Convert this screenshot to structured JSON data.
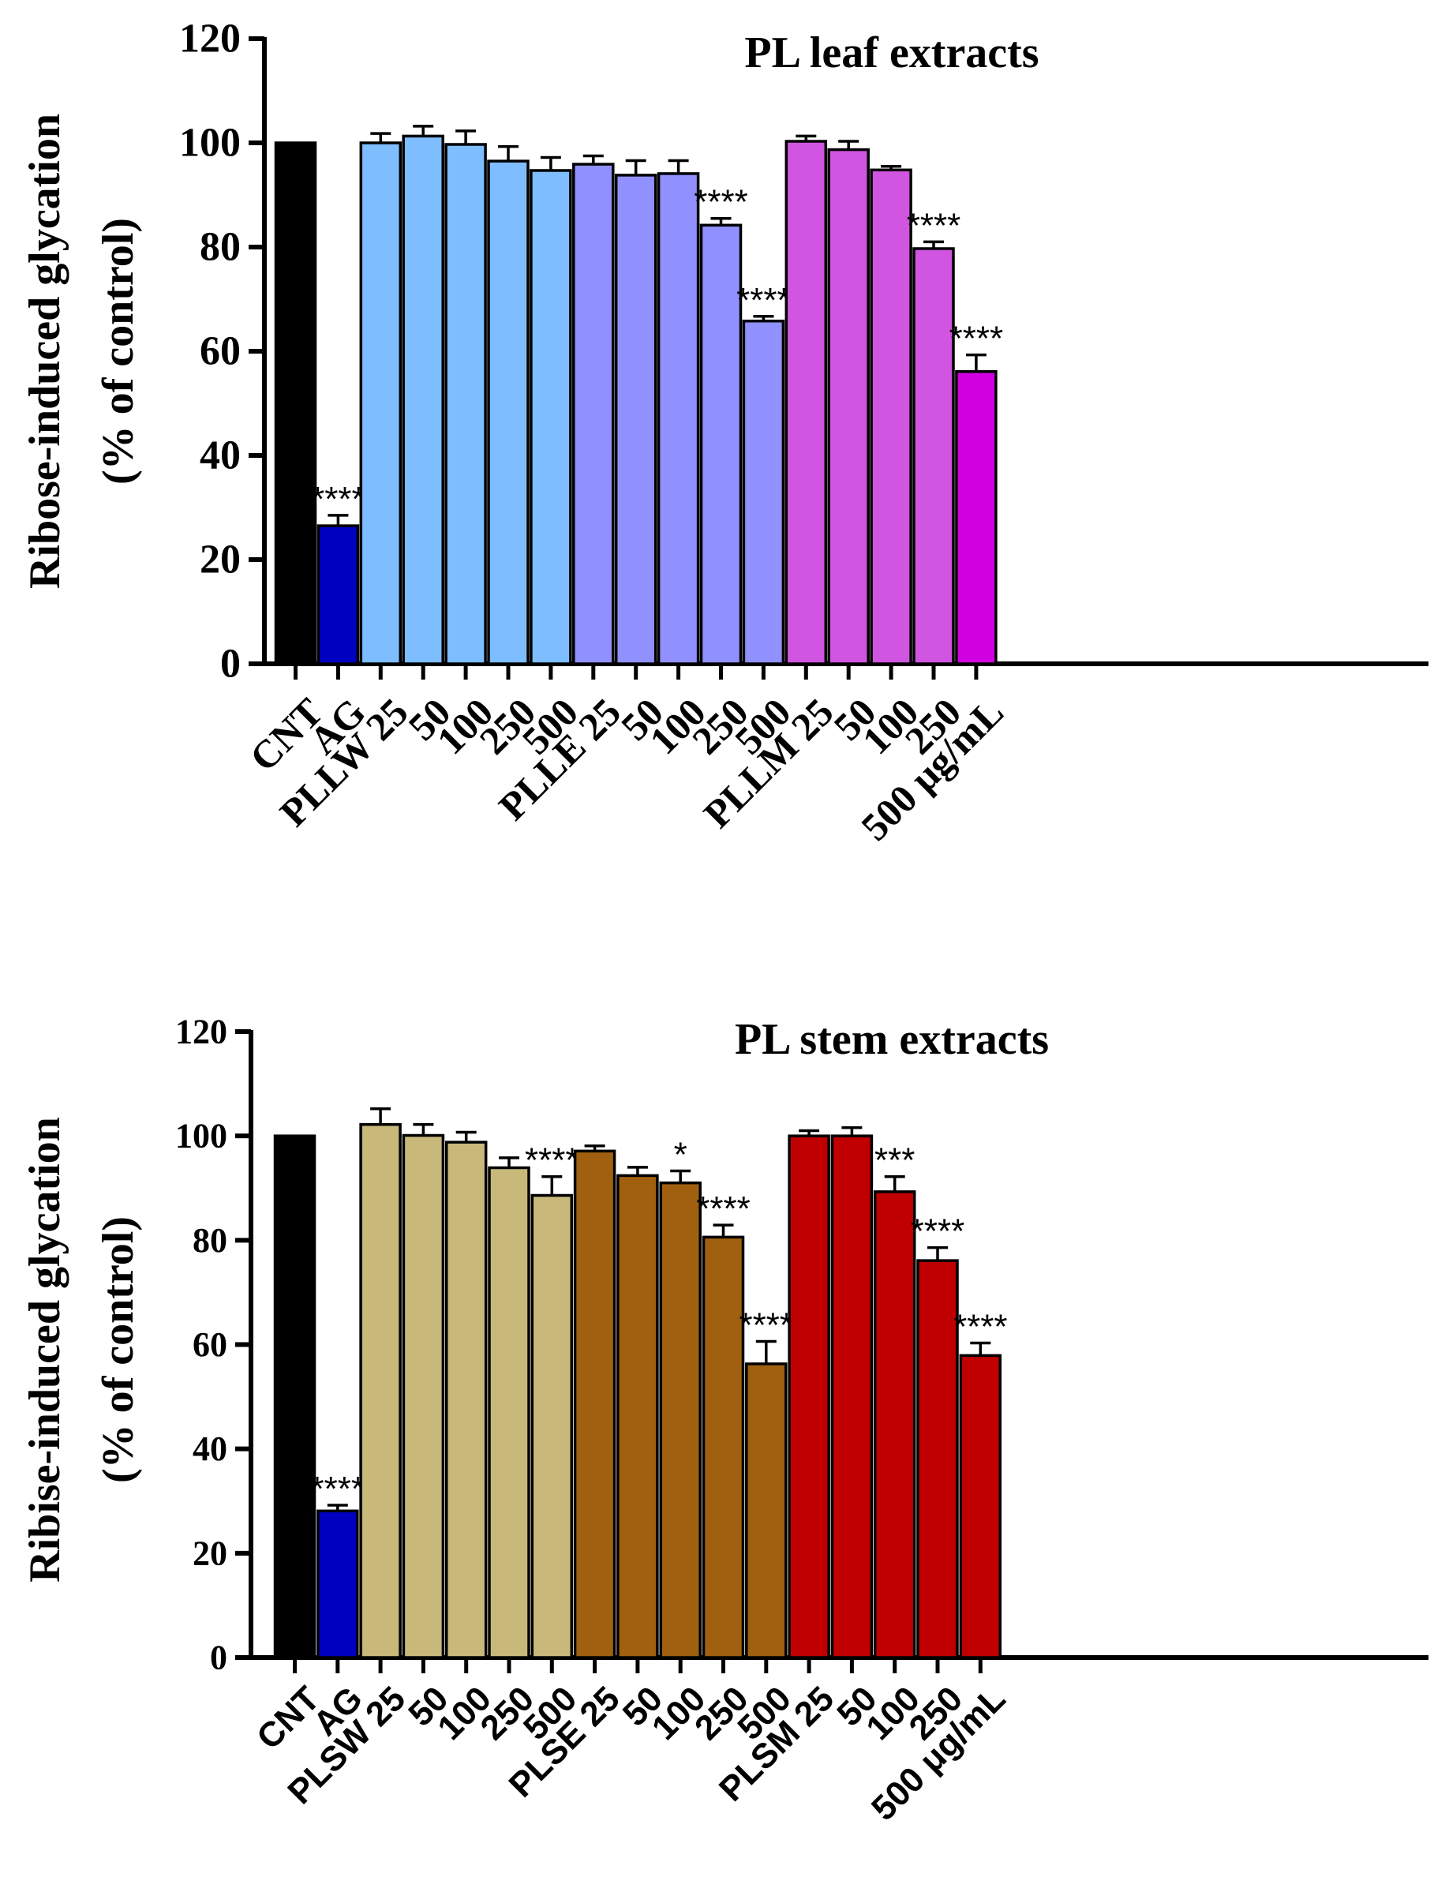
{
  "chart_data": [
    {
      "type": "bar",
      "title": "PL leaf extracts",
      "ylabel_line1": "Ribose-induced glycation",
      "ylabel_line2": "(% of control)",
      "xlabel": "",
      "ylim": [
        0,
        120
      ],
      "yticks": [
        0,
        20,
        40,
        60,
        80,
        100,
        120
      ],
      "ytick_labels": [
        "0",
        "20",
        "40",
        "60",
        "80",
        "100",
        "120"
      ],
      "grid": false,
      "categories": [
        "CNT",
        "AG",
        "PLLW 25",
        "50",
        "100",
        "250",
        "500",
        "PLLE 25",
        "50",
        "100",
        "250",
        "500",
        "PLLM 25",
        "50",
        "100",
        "250",
        "500 μg/mL"
      ],
      "values": [
        100,
        26.5,
        100,
        101.3,
        99.7,
        96.5,
        94.7,
        95.9,
        93.8,
        94.1,
        84.2,
        65.8,
        100.3,
        98.7,
        94.8,
        79.7,
        56.1
      ],
      "errors": [
        0,
        2.0,
        1.8,
        1.9,
        2.6,
        2.8,
        2.5,
        1.6,
        2.8,
        2.5,
        1.3,
        0.9,
        1.0,
        1.6,
        0.7,
        1.3,
        3.2
      ],
      "significance": [
        "",
        "****",
        "",
        "",
        "",
        "",
        "",
        "",
        "",
        "",
        "****",
        "****",
        "",
        "",
        "",
        "****",
        "****"
      ],
      "colors": [
        "#000000",
        "#0000c0",
        "#7ebdff",
        "#7ebdff",
        "#7ebdff",
        "#7ebdff",
        "#7ebdff",
        "#9090ff",
        "#9090ff",
        "#9090ff",
        "#9090ff",
        "#9090ff",
        "#d055e0",
        "#d055e0",
        "#d055e0",
        "#d055e0",
        "#d000e0"
      ]
    },
    {
      "type": "bar",
      "title": "PL stem extracts",
      "ylabel_line1": "Ribise-induced glycation",
      "ylabel_line2": "(% of control)",
      "xlabel": "",
      "ylim": [
        0,
        120
      ],
      "yticks": [
        0,
        20,
        40,
        60,
        80,
        100,
        120
      ],
      "ytick_labels": [
        "0",
        "20",
        "40",
        "60",
        "80",
        "100",
        "120"
      ],
      "grid": false,
      "categories": [
        "CNT",
        "AG",
        "PLSW 25",
        "50",
        "100",
        "250",
        "500",
        "PLSE 25",
        "50",
        "100",
        "250",
        "500",
        "PLSM 25",
        "50",
        "100",
        "250",
        "500 μg/mL"
      ],
      "values": [
        100,
        28.1,
        102.2,
        100.1,
        98.8,
        93.9,
        88.6,
        97.1,
        92.4,
        91.0,
        80.6,
        56.3,
        100.0,
        100.0,
        89.3,
        76.1,
        57.9
      ],
      "errors": [
        0,
        1.1,
        3.0,
        2.1,
        1.9,
        1.9,
        3.6,
        1.0,
        1.6,
        2.3,
        2.3,
        4.3,
        1.0,
        1.6,
        2.9,
        2.5,
        2.4
      ],
      "significance": [
        "",
        "****",
        "",
        "",
        "",
        "",
        "****",
        "",
        "",
        "*",
        "****",
        "****",
        "",
        "",
        "***",
        "****",
        "****"
      ],
      "colors": [
        "#000000",
        "#0000c0",
        "#c8b87a",
        "#c8b87a",
        "#c8b87a",
        "#c8b87a",
        "#c8b87a",
        "#a06010",
        "#a06010",
        "#a06010",
        "#a06010",
        "#a06010",
        "#c00000",
        "#c00000",
        "#c00000",
        "#c00000",
        "#c00000"
      ]
    }
  ]
}
